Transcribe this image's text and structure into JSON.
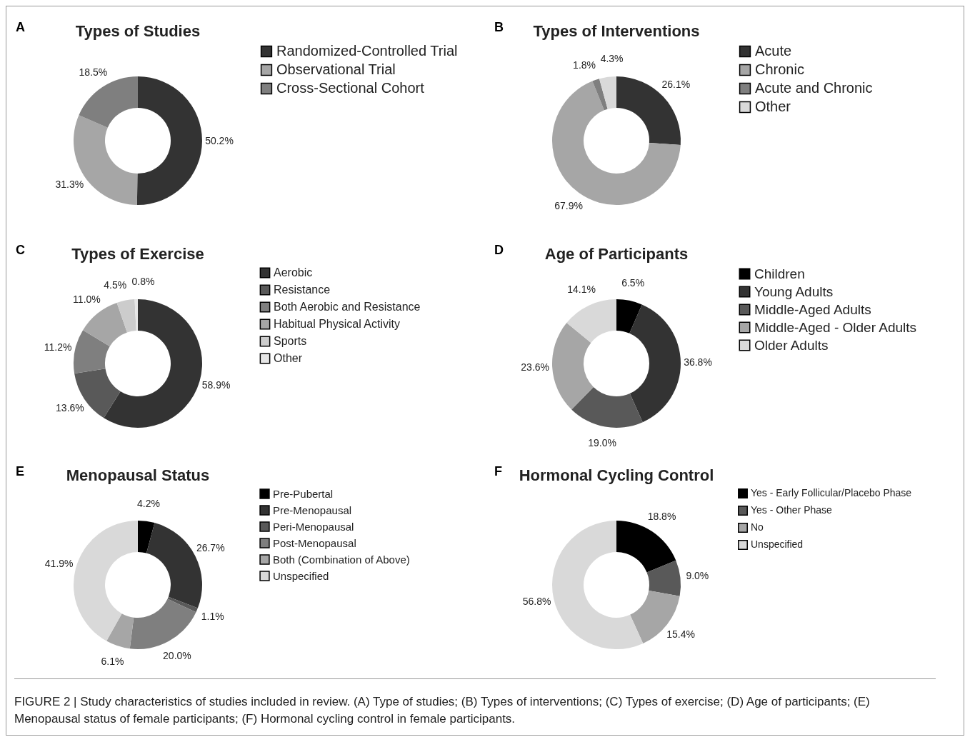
{
  "chart_data": [
    {
      "type": "donut",
      "title": "Types of Studies",
      "annotations": [
        "A"
      ],
      "legend": "right",
      "categories": [
        "Randomized-Controlled Trial",
        "Observational Trial",
        "Cross-Sectional Cohort"
      ],
      "values": [
        50.2,
        31.3,
        18.5
      ],
      "value_labels": [
        "50.2%",
        "31.3%",
        "18.5%"
      ],
      "colors": [
        "#333333",
        "#a6a6a6",
        "#7f7f7f"
      ]
    },
    {
      "type": "donut",
      "title": "Types of Interventions",
      "annotations": [
        "B"
      ],
      "legend": "right",
      "categories": [
        "Acute",
        "Chronic",
        "Acute and  Chronic",
        "Other"
      ],
      "values": [
        26.1,
        67.9,
        1.8,
        4.3
      ],
      "value_labels": [
        "26.1%",
        "67.9%",
        "1.8%",
        "4.3%"
      ],
      "colors": [
        "#333333",
        "#a6a6a6",
        "#7f7f7f",
        "#d9d9d9"
      ]
    },
    {
      "type": "donut",
      "title": "Types of Exercise",
      "annotations": [
        "C"
      ],
      "legend": "right",
      "categories": [
        "Aerobic",
        "Resistance",
        "Both Aerobic and Resistance",
        "Habitual Physical Activity",
        "Sports",
        "Other"
      ],
      "values": [
        58.9,
        13.6,
        11.2,
        11.0,
        4.5,
        0.8
      ],
      "value_labels": [
        "58.9%",
        "13.6%",
        "11.2%",
        "11.0%",
        "4.5%",
        "0.8%"
      ],
      "colors": [
        "#333333",
        "#595959",
        "#7f7f7f",
        "#a6a6a6",
        "#cccccc",
        "#e6e6e6"
      ]
    },
    {
      "type": "donut",
      "title": "Age of Participants",
      "annotations": [
        "D"
      ],
      "legend": "right",
      "categories": [
        "Children",
        "Young Adults",
        "Middle-Aged Adults",
        "Middle-Aged - Older Adults",
        "Older Adults"
      ],
      "values": [
        6.5,
        36.8,
        19.0,
        23.6,
        14.1
      ],
      "value_labels": [
        "6.5%",
        "36.8%",
        "19.0%",
        "23.6%",
        "14.1%"
      ],
      "colors": [
        "#000000",
        "#333333",
        "#595959",
        "#a6a6a6",
        "#d9d9d9"
      ]
    },
    {
      "type": "donut",
      "title": "Menopausal Status",
      "annotations": [
        "E"
      ],
      "legend": "right",
      "categories": [
        "Pre-Pubertal",
        "Pre-Menopausal",
        "Peri-Menopausal",
        "Post-Menopausal",
        "Both (Combination of Above)",
        "Unspecified"
      ],
      "values": [
        4.2,
        26.7,
        1.1,
        20.0,
        6.1,
        41.9
      ],
      "value_labels": [
        "4.2%",
        "26.7%",
        "1.1%",
        "20.0%",
        "6.1%",
        "41.9%"
      ],
      "colors": [
        "#000000",
        "#333333",
        "#595959",
        "#7f7f7f",
        "#a6a6a6",
        "#d9d9d9"
      ]
    },
    {
      "type": "donut",
      "title": "Hormonal Cycling Control",
      "annotations": [
        "F"
      ],
      "legend": "right",
      "categories": [
        "Yes - Early Follicular/Placebo  Phase",
        "Yes - Other Phase",
        "No",
        "Unspecified"
      ],
      "values": [
        18.8,
        9.0,
        15.4,
        56.8
      ],
      "value_labels": [
        "18.8%",
        "9.0%",
        "15.4%",
        "56.8%"
      ],
      "colors": [
        "#000000",
        "#595959",
        "#a6a6a6",
        "#d9d9d9"
      ]
    },
    {
      "type": "other",
      "annotations": [
        "FIGURE 2 | Study characteristics of studies included in review. (A) Type of studies; (B) Types of interventions; (C) Types of exercise; (D) Age of participants; (E) Menopausal status of female participants; (F) Hormonal cycling control in female participants."
      ]
    }
  ]
}
